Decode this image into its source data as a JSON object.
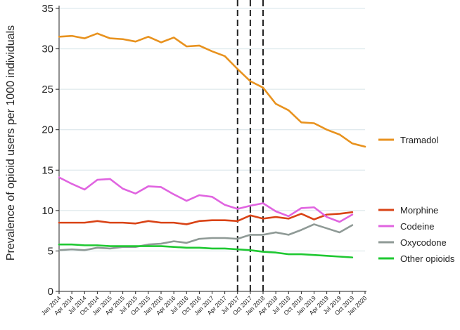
{
  "chart_data": {
    "type": "line",
    "title": "",
    "xlabel": "",
    "ylabel": "Prevalence of opioid users per 1000 individuals",
    "ylim": [
      0,
      35
    ],
    "yticks": [
      0,
      5,
      10,
      15,
      20,
      25,
      30,
      35
    ],
    "grid": true,
    "legend_position": "right",
    "x": [
      "Jan 2014",
      "Apr 2014",
      "Jul 2014",
      "Oct 2014",
      "Jan 2015",
      "Apr 2015",
      "Jul 2015",
      "Oct 2015",
      "Jan 2016",
      "Apr 2016",
      "Jul 2016",
      "Oct 2016",
      "Jan 2017",
      "Apr 2017",
      "Jul 2017",
      "Oct 2017",
      "Jan 2018",
      "Apr 2018",
      "Jul 2018",
      "Oct 2018",
      "Jan 2019",
      "Apr 2019",
      "Jul 2019",
      "Oct 2019",
      "Jan 2020"
    ],
    "vlines": [
      "Jul 2017",
      "Oct 2017",
      "Jan 2018"
    ],
    "series": [
      {
        "name": "Tramadol",
        "color": "#e8921e",
        "values": [
          31.5,
          31.6,
          31.3,
          31.9,
          31.3,
          31.2,
          30.9,
          31.5,
          30.8,
          31.4,
          30.3,
          30.4,
          29.7,
          29.1,
          27.5,
          26.0,
          25.2,
          23.2,
          22.4,
          20.9,
          20.8,
          20.0,
          19.4,
          18.3,
          17.9
        ]
      },
      {
        "name": "Morphine",
        "color": "#d94316",
        "values": [
          8.5,
          8.5,
          8.5,
          8.7,
          8.5,
          8.5,
          8.4,
          8.7,
          8.5,
          8.5,
          8.3,
          8.7,
          8.8,
          8.8,
          8.7,
          9.4,
          9.0,
          9.2,
          9.0,
          9.6,
          8.9,
          9.5,
          9.6,
          9.8,
          null
        ]
      },
      {
        "name": "Codeine",
        "color": "#e064e0",
        "values": [
          14.1,
          13.3,
          12.6,
          13.8,
          13.9,
          12.7,
          12.1,
          13.0,
          12.9,
          12.0,
          11.2,
          11.9,
          11.7,
          10.7,
          10.2,
          10.6,
          10.9,
          9.9,
          9.3,
          10.3,
          10.4,
          9.2,
          8.6,
          9.5,
          null
        ]
      },
      {
        "name": "Oxycodone",
        "color": "#8f9a96",
        "values": [
          5.1,
          5.2,
          5.1,
          5.4,
          5.3,
          5.5,
          5.5,
          5.8,
          5.9,
          6.2,
          6.0,
          6.5,
          6.6,
          6.6,
          6.5,
          7.0,
          7.0,
          7.3,
          7.0,
          7.6,
          8.3,
          7.8,
          7.3,
          8.2,
          null
        ]
      },
      {
        "name": "Other opioids",
        "color": "#1ec831",
        "values": [
          5.8,
          5.8,
          5.7,
          5.7,
          5.6,
          5.6,
          5.6,
          5.6,
          5.6,
          5.5,
          5.4,
          5.4,
          5.3,
          5.3,
          5.2,
          5.1,
          4.9,
          4.8,
          4.6,
          4.6,
          4.5,
          4.4,
          4.3,
          4.2,
          null
        ]
      }
    ]
  },
  "colors": {
    "grid": "#d6e4e8",
    "axis": "#222222",
    "vline": "#222222",
    "background": "#ffffff"
  }
}
